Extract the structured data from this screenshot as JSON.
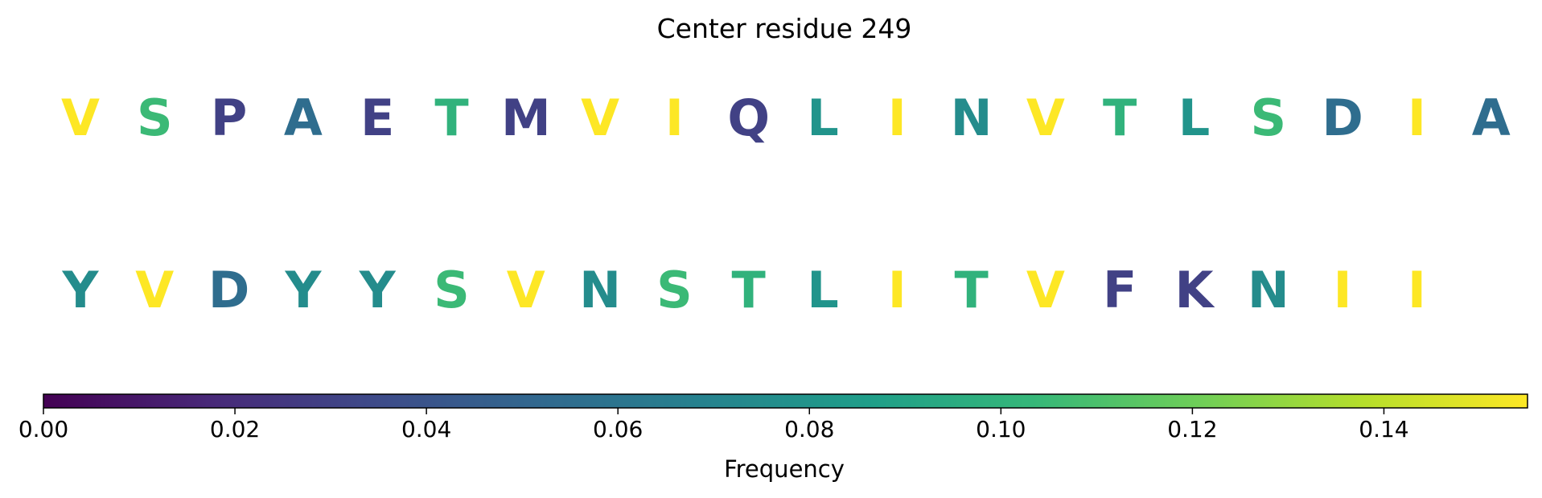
{
  "chart_data": {
    "type": "heatmap",
    "title": "Center residue 249",
    "rows": [
      {
        "residues": [
          "V",
          "S",
          "P",
          "A",
          "E",
          "T",
          "M",
          "V",
          "I",
          "Q",
          "L",
          "I",
          "N",
          "V",
          "T",
          "L",
          "S",
          "D",
          "I",
          "A"
        ],
        "frequencies": [
          0.155,
          0.105,
          0.03,
          0.055,
          0.03,
          0.1,
          0.03,
          0.155,
          0.155,
          0.03,
          0.08,
          0.155,
          0.075,
          0.155,
          0.1,
          0.08,
          0.105,
          0.055,
          0.155,
          0.055
        ]
      },
      {
        "residues": [
          "Y",
          "V",
          "D",
          "Y",
          "Y",
          "S",
          "V",
          "N",
          "S",
          "T",
          "L",
          "I",
          "T",
          "V",
          "F",
          "K",
          "N",
          "I",
          "I"
        ],
        "frequencies": [
          0.075,
          0.155,
          0.055,
          0.075,
          0.075,
          0.105,
          0.155,
          0.075,
          0.105,
          0.1,
          0.08,
          0.155,
          0.1,
          0.155,
          0.03,
          0.03,
          0.075,
          0.155,
          0.155
        ]
      }
    ],
    "colorbar": {
      "label": "Frequency",
      "range": [
        0,
        0.155
      ],
      "ticks": [
        0.0,
        0.02,
        0.04,
        0.06,
        0.08,
        0.1,
        0.12,
        0.14
      ],
      "tick_labels": [
        "0.00",
        "0.02",
        "0.04",
        "0.06",
        "0.08",
        "0.10",
        "0.12",
        "0.14"
      ],
      "colormap": "viridis",
      "colormap_stops": [
        "#440154",
        "#482878",
        "#3e4a89",
        "#31688e",
        "#26828e",
        "#1f9e89",
        "#35b779",
        "#6ece58",
        "#b5de2b",
        "#fde725"
      ]
    }
  }
}
